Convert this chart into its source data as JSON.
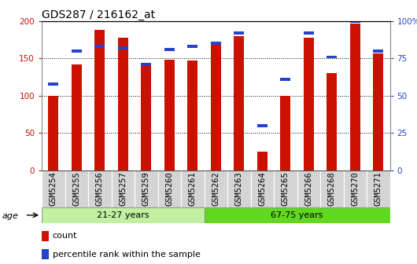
{
  "title": "GDS287 / 216162_at",
  "samples": [
    "GSM5254",
    "GSM5255",
    "GSM5256",
    "GSM5257",
    "GSM5259",
    "GSM5260",
    "GSM5261",
    "GSM5262",
    "GSM5263",
    "GSM5264",
    "GSM5265",
    "GSM5266",
    "GSM5268",
    "GSM5270",
    "GSM5271"
  ],
  "counts": [
    100,
    142,
    188,
    178,
    143,
    148,
    147,
    172,
    180,
    25,
    100,
    178,
    130,
    197,
    157
  ],
  "percentiles": [
    58,
    80,
    83,
    82,
    71,
    81,
    83,
    85,
    92,
    30,
    61,
    92,
    76,
    100,
    80
  ],
  "groups": [
    {
      "label": "21-27 years",
      "start": 0,
      "end": 7,
      "color": "#c0f0a0"
    },
    {
      "label": "67-75 years",
      "start": 7,
      "end": 15,
      "color": "#60d820"
    }
  ],
  "ylim_left": [
    0,
    200
  ],
  "ylim_right": [
    0,
    100
  ],
  "yticks_left": [
    0,
    50,
    100,
    150,
    200
  ],
  "yticks_right": [
    0,
    25,
    50,
    75,
    100
  ],
  "yticklabels_right": [
    "0",
    "25",
    "50",
    "75",
    "100%"
  ],
  "bar_color": "#cc1100",
  "percentile_color": "#2244cc",
  "bar_width": 0.45,
  "title_fontsize": 10,
  "tick_fontsize": 7.5,
  "axis_label_color_left": "#cc1100",
  "axis_label_color_right": "#2244cc",
  "age_label": "age",
  "legend_count": "count",
  "legend_percentile": "percentile rank within the sample",
  "group_border_color": "#888888",
  "xtick_bg": "#d4d4d4"
}
